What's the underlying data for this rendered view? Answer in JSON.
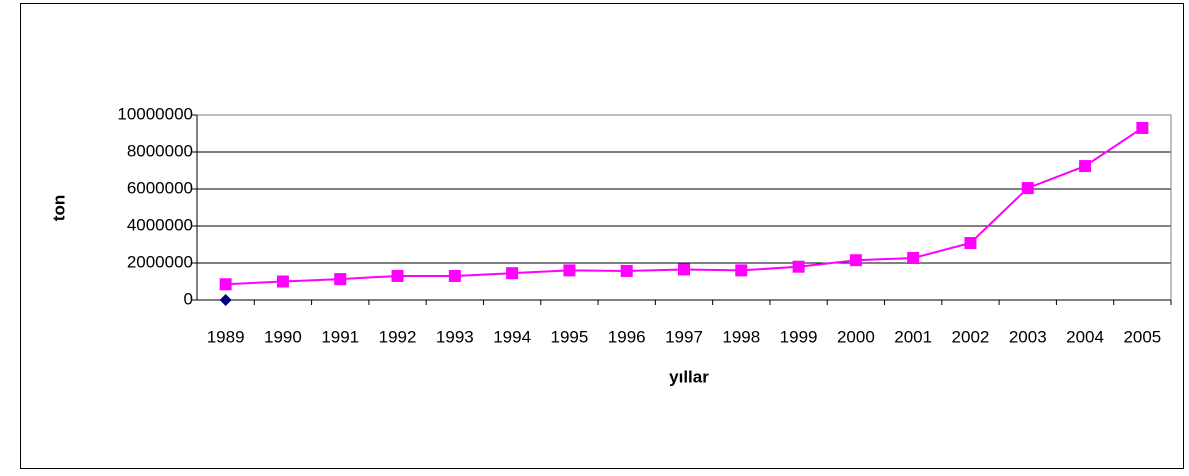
{
  "chart_data": {
    "type": "line",
    "x_label": "yıllar",
    "y_label": "ton",
    "categories": [
      "1989",
      "1990",
      "1991",
      "1992",
      "1993",
      "1994",
      "1995",
      "1996",
      "1997",
      "1998",
      "1999",
      "2000",
      "2001",
      "2002",
      "2003",
      "2004",
      "2005"
    ],
    "series": [
      {
        "color": "#ff00ff",
        "marker": "square",
        "values": [
          850000,
          1000000,
          1130000,
          1300000,
          1300000,
          1450000,
          1600000,
          1570000,
          1650000,
          1600000,
          1800000,
          2150000,
          2270000,
          3080000,
          6050000,
          7240000,
          9300000
        ]
      },
      {
        "color": "#000080",
        "marker": "diamond",
        "values": [
          0,
          null,
          null,
          null,
          null,
          null,
          null,
          null,
          null,
          null,
          null,
          null,
          null,
          null,
          null,
          null,
          null
        ]
      }
    ],
    "ylim": [
      0,
      10000000
    ],
    "yticks": [
      0,
      2000000,
      4000000,
      6000000,
      8000000,
      10000000
    ],
    "grid": true
  }
}
